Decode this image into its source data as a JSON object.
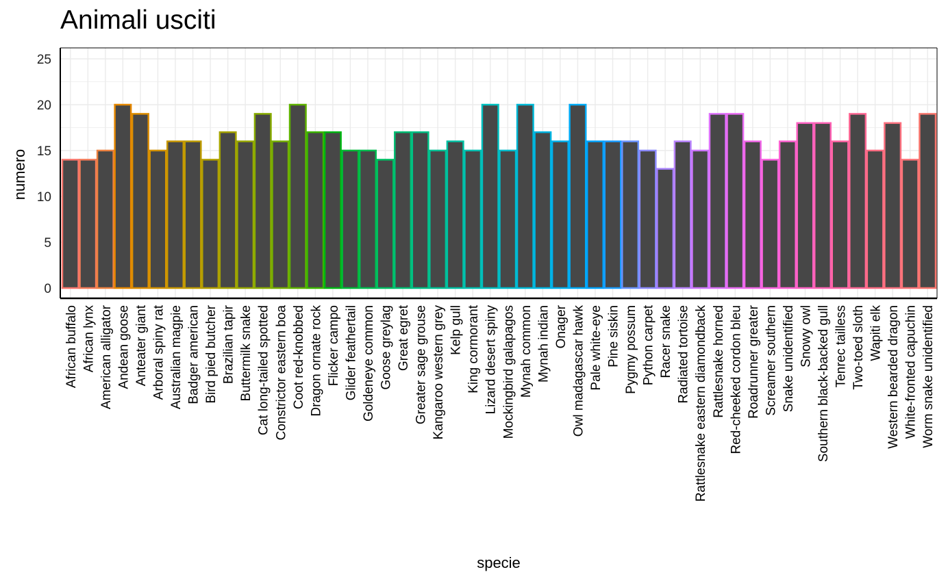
{
  "chart_data": {
    "type": "bar",
    "title": "Animali usciti",
    "xlabel": "specie",
    "ylabel": "numero",
    "ylim": [
      0,
      26
    ],
    "yticks": [
      0,
      5,
      10,
      15,
      20,
      25
    ],
    "grid": true,
    "legend": "none",
    "fill_color": "#474747",
    "categories": [
      "African buffalo",
      "African lynx",
      "American alligator",
      "Andean goose",
      "Anteater giant",
      "Arboral spiny rat",
      "Australian magpie",
      "Badger american",
      "Bird pied butcher",
      "Brazilian tapir",
      "Buttermilk snake",
      "Cat long-tailed spotted",
      "Constrictor eastern boa",
      "Coot red-knobbed",
      "Dragon ornate rock",
      "Flicker campo",
      "Glider feathertail",
      "Goldeneye common",
      "Goose greylag",
      "Great egret",
      "Greater sage grouse",
      "Kangaroo western grey",
      "Kelp gull",
      "King cormorant",
      "Lizard desert spiny",
      "Mockingbird galapagos",
      "Mynah common",
      "Mynah indian",
      "Onager",
      "Owl madagascar hawk",
      "Pale white-eye",
      "Pine siskin",
      "Pygmy possum",
      "Python carpet",
      "Racer snake",
      "Radiated tortoise",
      "Rattlesnake eastern diamondback",
      "Rattlesnake horned",
      "Red-cheeked cordon bleu",
      "Roadrunner greater",
      "Screamer southern",
      "Snake unidentified",
      "Snowy owl",
      "Southern black-backed gull",
      "Tenrec tailless",
      "Two-toed sloth",
      "Wapiti elk",
      "Western bearded dragon",
      "White-fronted capuchin",
      "Worm snake unidentified"
    ],
    "values": [
      14,
      14,
      15,
      20,
      19,
      15,
      16,
      16,
      14,
      17,
      16,
      19,
      16,
      20,
      17,
      17,
      15,
      15,
      14,
      17,
      17,
      15,
      16,
      15,
      20,
      15,
      20,
      17,
      16,
      20,
      16,
      16,
      16,
      15,
      13,
      16,
      15,
      19,
      19,
      16,
      14,
      16,
      18,
      18,
      16,
      19,
      15,
      18,
      14,
      19
    ],
    "outline_colors": [
      "#F8766D",
      "#F37B59",
      "#ED8141",
      "#E58700",
      "#DC8D00",
      "#D49200",
      "#C99800",
      "#BE9C00",
      "#B3A000",
      "#A6A400",
      "#98A800",
      "#88AC00",
      "#76AF00",
      "#5FB200",
      "#3CB600",
      "#00B812",
      "#00BA38",
      "#00BC50",
      "#00BE63",
      "#00BF74",
      "#00C085",
      "#00C094",
      "#00C0A3",
      "#00C0B1",
      "#00BFBF",
      "#00BCCB",
      "#00B9D7",
      "#00B5E2",
      "#00B0EC",
      "#00AAF5",
      "#00A3FD",
      "#1A9CFF",
      "#6A93FF",
      "#8C8AFF",
      "#A680FF",
      "#B983FF",
      "#CC76FF",
      "#DC71FA",
      "#E86BF2",
      "#F166E8",
      "#F863DD",
      "#FC61D0",
      "#FF61C3",
      "#FF62B4",
      "#FF64A4",
      "#FF6894",
      "#FE6C82",
      "#FC717F",
      "#FA7478",
      "#F8766D"
    ]
  }
}
